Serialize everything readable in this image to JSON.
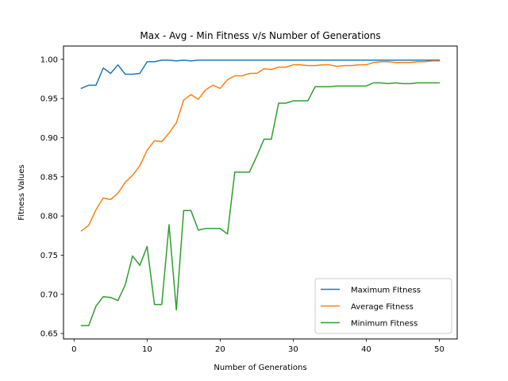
{
  "chart_data": {
    "type": "line",
    "title": "Max - Avg - Min Fitness v/s Number of Generations",
    "xlabel": "Number of Generations",
    "ylabel": "Fitness Values",
    "xlim": [
      -1.45,
      52.45
    ],
    "ylim": [
      0.643,
      1.017
    ],
    "xticks": [
      0,
      10,
      20,
      30,
      40,
      50
    ],
    "yticks": [
      0.65,
      0.7,
      0.75,
      0.8,
      0.85,
      0.9,
      0.95,
      1.0
    ],
    "ytick_labels": [
      "0.65",
      "0.70",
      "0.75",
      "0.80",
      "0.85",
      "0.90",
      "0.95",
      "1.00"
    ],
    "grid": false,
    "legend_position": "lower-right",
    "x": [
      1,
      2,
      3,
      4,
      5,
      6,
      7,
      8,
      9,
      10,
      11,
      12,
      13,
      14,
      15,
      16,
      17,
      18,
      19,
      20,
      21,
      22,
      23,
      24,
      25,
      26,
      27,
      28,
      29,
      30,
      31,
      32,
      33,
      34,
      35,
      36,
      37,
      38,
      39,
      40,
      41,
      42,
      43,
      44,
      45,
      46,
      47,
      48,
      49,
      50
    ],
    "series": [
      {
        "name": "Maximum FItness",
        "color": "#1f77b4",
        "values": [
          0.963,
          0.967,
          0.967,
          0.989,
          0.982,
          0.993,
          0.981,
          0.981,
          0.982,
          0.997,
          0.997,
          0.999,
          0.999,
          0.998,
          0.999,
          0.998,
          0.999,
          0.999,
          0.999,
          0.999,
          0.999,
          0.999,
          0.999,
          0.999,
          0.999,
          0.999,
          0.999,
          0.999,
          0.999,
          0.999,
          0.999,
          0.999,
          0.999,
          0.999,
          0.999,
          0.999,
          0.999,
          0.999,
          0.999,
          0.999,
          0.999,
          0.999,
          0.999,
          0.999,
          0.999,
          0.999,
          0.999,
          0.999,
          0.999,
          0.999
        ]
      },
      {
        "name": "Average Fitness",
        "color": "#ff7f0e",
        "values": [
          0.781,
          0.788,
          0.808,
          0.823,
          0.821,
          0.829,
          0.843,
          0.852,
          0.864,
          0.884,
          0.896,
          0.895,
          0.906,
          0.919,
          0.948,
          0.955,
          0.949,
          0.961,
          0.967,
          0.963,
          0.974,
          0.979,
          0.979,
          0.982,
          0.982,
          0.988,
          0.987,
          0.99,
          0.99,
          0.993,
          0.993,
          0.992,
          0.992,
          0.993,
          0.993,
          0.991,
          0.992,
          0.992,
          0.993,
          0.993,
          0.996,
          0.997,
          0.997,
          0.996,
          0.996,
          0.996,
          0.997,
          0.997,
          0.998,
          0.998
        ]
      },
      {
        "name": "Minimum Fitness",
        "color": "#2ca02c",
        "values": [
          0.66,
          0.66,
          0.685,
          0.697,
          0.696,
          0.692,
          0.712,
          0.749,
          0.737,
          0.761,
          0.687,
          0.687,
          0.789,
          0.68,
          0.807,
          0.807,
          0.782,
          0.784,
          0.784,
          0.784,
          0.777,
          0.856,
          0.856,
          0.856,
          0.876,
          0.898,
          0.898,
          0.944,
          0.944,
          0.947,
          0.947,
          0.947,
          0.965,
          0.965,
          0.965,
          0.966,
          0.966,
          0.966,
          0.966,
          0.966,
          0.97,
          0.97,
          0.969,
          0.97,
          0.969,
          0.969,
          0.97,
          0.97,
          0.97,
          0.97
        ]
      }
    ]
  }
}
